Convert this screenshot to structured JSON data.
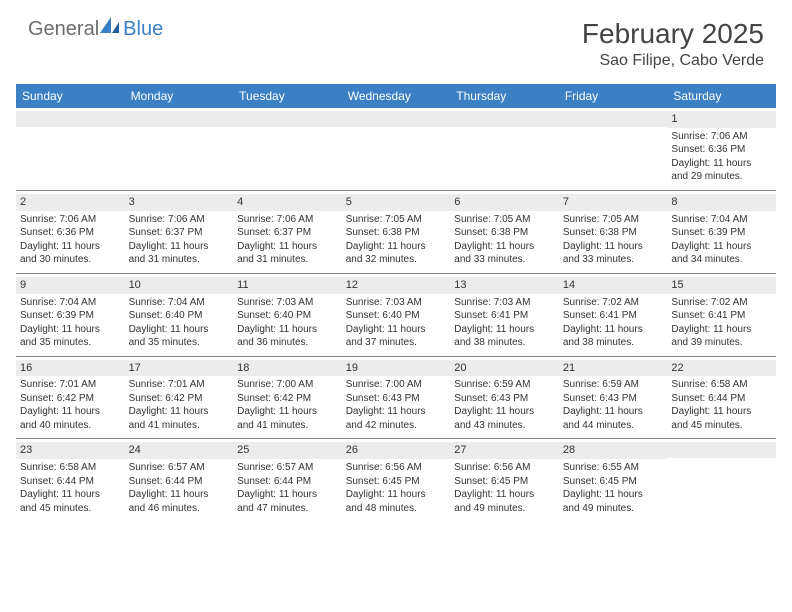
{
  "logo": {
    "general": "General",
    "blue": "Blue"
  },
  "title": "February 2025",
  "location": "Sao Filipe, Cabo Verde",
  "colors": {
    "header_bg": "#3b7fc4",
    "header_text": "#ffffff",
    "daynum_bg": "#ececec",
    "border": "#888888",
    "text": "#333333",
    "logo_gray": "#6d6d6d",
    "logo_blue": "#3b7fc4"
  },
  "dayNames": [
    "Sunday",
    "Monday",
    "Tuesday",
    "Wednesday",
    "Thursday",
    "Friday",
    "Saturday"
  ],
  "weeks": [
    [
      null,
      null,
      null,
      null,
      null,
      null,
      {
        "n": "1",
        "sunrise": "7:06 AM",
        "sunset": "6:36 PM",
        "dl1": "Daylight: 11 hours",
        "dl2": "and 29 minutes."
      }
    ],
    [
      {
        "n": "2",
        "sunrise": "7:06 AM",
        "sunset": "6:36 PM",
        "dl1": "Daylight: 11 hours",
        "dl2": "and 30 minutes."
      },
      {
        "n": "3",
        "sunrise": "7:06 AM",
        "sunset": "6:37 PM",
        "dl1": "Daylight: 11 hours",
        "dl2": "and 31 minutes."
      },
      {
        "n": "4",
        "sunrise": "7:06 AM",
        "sunset": "6:37 PM",
        "dl1": "Daylight: 11 hours",
        "dl2": "and 31 minutes."
      },
      {
        "n": "5",
        "sunrise": "7:05 AM",
        "sunset": "6:38 PM",
        "dl1": "Daylight: 11 hours",
        "dl2": "and 32 minutes."
      },
      {
        "n": "6",
        "sunrise": "7:05 AM",
        "sunset": "6:38 PM",
        "dl1": "Daylight: 11 hours",
        "dl2": "and 33 minutes."
      },
      {
        "n": "7",
        "sunrise": "7:05 AM",
        "sunset": "6:38 PM",
        "dl1": "Daylight: 11 hours",
        "dl2": "and 33 minutes."
      },
      {
        "n": "8",
        "sunrise": "7:04 AM",
        "sunset": "6:39 PM",
        "dl1": "Daylight: 11 hours",
        "dl2": "and 34 minutes."
      }
    ],
    [
      {
        "n": "9",
        "sunrise": "7:04 AM",
        "sunset": "6:39 PM",
        "dl1": "Daylight: 11 hours",
        "dl2": "and 35 minutes."
      },
      {
        "n": "10",
        "sunrise": "7:04 AM",
        "sunset": "6:40 PM",
        "dl1": "Daylight: 11 hours",
        "dl2": "and 35 minutes."
      },
      {
        "n": "11",
        "sunrise": "7:03 AM",
        "sunset": "6:40 PM",
        "dl1": "Daylight: 11 hours",
        "dl2": "and 36 minutes."
      },
      {
        "n": "12",
        "sunrise": "7:03 AM",
        "sunset": "6:40 PM",
        "dl1": "Daylight: 11 hours",
        "dl2": "and 37 minutes."
      },
      {
        "n": "13",
        "sunrise": "7:03 AM",
        "sunset": "6:41 PM",
        "dl1": "Daylight: 11 hours",
        "dl2": "and 38 minutes."
      },
      {
        "n": "14",
        "sunrise": "7:02 AM",
        "sunset": "6:41 PM",
        "dl1": "Daylight: 11 hours",
        "dl2": "and 38 minutes."
      },
      {
        "n": "15",
        "sunrise": "7:02 AM",
        "sunset": "6:41 PM",
        "dl1": "Daylight: 11 hours",
        "dl2": "and 39 minutes."
      }
    ],
    [
      {
        "n": "16",
        "sunrise": "7:01 AM",
        "sunset": "6:42 PM",
        "dl1": "Daylight: 11 hours",
        "dl2": "and 40 minutes."
      },
      {
        "n": "17",
        "sunrise": "7:01 AM",
        "sunset": "6:42 PM",
        "dl1": "Daylight: 11 hours",
        "dl2": "and 41 minutes."
      },
      {
        "n": "18",
        "sunrise": "7:00 AM",
        "sunset": "6:42 PM",
        "dl1": "Daylight: 11 hours",
        "dl2": "and 41 minutes."
      },
      {
        "n": "19",
        "sunrise": "7:00 AM",
        "sunset": "6:43 PM",
        "dl1": "Daylight: 11 hours",
        "dl2": "and 42 minutes."
      },
      {
        "n": "20",
        "sunrise": "6:59 AM",
        "sunset": "6:43 PM",
        "dl1": "Daylight: 11 hours",
        "dl2": "and 43 minutes."
      },
      {
        "n": "21",
        "sunrise": "6:59 AM",
        "sunset": "6:43 PM",
        "dl1": "Daylight: 11 hours",
        "dl2": "and 44 minutes."
      },
      {
        "n": "22",
        "sunrise": "6:58 AM",
        "sunset": "6:44 PM",
        "dl1": "Daylight: 11 hours",
        "dl2": "and 45 minutes."
      }
    ],
    [
      {
        "n": "23",
        "sunrise": "6:58 AM",
        "sunset": "6:44 PM",
        "dl1": "Daylight: 11 hours",
        "dl2": "and 45 minutes."
      },
      {
        "n": "24",
        "sunrise": "6:57 AM",
        "sunset": "6:44 PM",
        "dl1": "Daylight: 11 hours",
        "dl2": "and 46 minutes."
      },
      {
        "n": "25",
        "sunrise": "6:57 AM",
        "sunset": "6:44 PM",
        "dl1": "Daylight: 11 hours",
        "dl2": "and 47 minutes."
      },
      {
        "n": "26",
        "sunrise": "6:56 AM",
        "sunset": "6:45 PM",
        "dl1": "Daylight: 11 hours",
        "dl2": "and 48 minutes."
      },
      {
        "n": "27",
        "sunrise": "6:56 AM",
        "sunset": "6:45 PM",
        "dl1": "Daylight: 11 hours",
        "dl2": "and 49 minutes."
      },
      {
        "n": "28",
        "sunrise": "6:55 AM",
        "sunset": "6:45 PM",
        "dl1": "Daylight: 11 hours",
        "dl2": "and 49 minutes."
      },
      null
    ]
  ],
  "labels": {
    "sunrise": "Sunrise:",
    "sunset": "Sunset:"
  }
}
